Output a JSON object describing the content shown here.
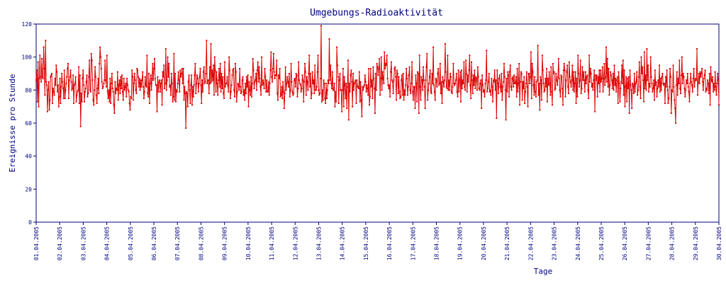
{
  "chart_data": {
    "type": "line",
    "title": "Umgebungs-Radioaktivität",
    "xlabel": "Tage",
    "ylabel": "Ereignisse pro Stunde",
    "ylim": [
      0,
      120
    ],
    "yticks": [
      0,
      20,
      40,
      60,
      80,
      100,
      120
    ],
    "xlim": [
      "2005-04-01",
      "2005-04-30"
    ],
    "x_tick_labels": [
      "01.04.2005",
      "02.04.2005",
      "03.04.2005",
      "04.04.2005",
      "05.04.2005",
      "06.04.2005",
      "07.04.2005",
      "08.04.2005",
      "09.04.2005",
      "10.04.2005",
      "11.04.2005",
      "12.04.2005",
      "13.04.2005",
      "14.04.2005",
      "15.04.2005",
      "16.04.2005",
      "17.04.2005",
      "18.04.2005",
      "19.04.2005",
      "20.04.2005",
      "21.04.2005",
      "22.04.2005",
      "23.04.2005",
      "24.04.2005",
      "25.04.2005",
      "26.04.2005",
      "27.04.2005",
      "28.04.2005",
      "29.04.2005",
      "30.04.2005"
    ],
    "grid": false,
    "legend": "none",
    "colors": {
      "series": "#dd0000",
      "axes": "#000080",
      "text": "#000080"
    },
    "series": [
      {
        "values": [
          86,
          92,
          73,
          97,
          70,
          87,
          101,
          88,
          85,
          99,
          88,
          87,
          106,
          93,
          77,
          110,
          85,
          83,
          67,
          80,
          85,
          68,
          74,
          88,
          89,
          90,
          72,
          81,
          79,
          77,
          87,
          83,
          95,
          91,
          79,
          83,
          70,
          76,
          87,
          72,
          82,
          90,
          85,
          81,
          75,
          92,
          75,
          80,
          84,
          88,
          93,
          96,
          75,
          86,
          88,
          92,
          85,
          80,
          81,
          89,
          72,
          83,
          84,
          88,
          73,
          77,
          79,
          80,
          94,
          72,
          89,
          58,
          78,
          73,
          87,
          92,
          83,
          73,
          79,
          81,
          85,
          89,
          76,
          78,
          88,
          98,
          80,
          79,
          102,
          98,
          86,
          74,
          71,
          80,
          94,
          88,
          77,
          72,
          81,
          87,
          78,
          96,
          106,
          100,
          93,
          85,
          81,
          82,
          84,
          86,
          98,
          86,
          82,
          101,
          79,
          75,
          80,
          73,
          87,
          72,
          84,
          90,
          81,
          79,
          71,
          66,
          85,
          78,
          81,
          80,
          91,
          74,
          83,
          86,
          78,
          88,
          81,
          89,
          79,
          74,
          87,
          80,
          82,
          84,
          76,
          87,
          83,
          80,
          79,
          72,
          68,
          76,
          75,
          92,
          88,
          74,
          84,
          90,
          86,
          80,
          78,
          93,
          92,
          88,
          82,
          87,
          80,
          86,
          82,
          86,
          91,
          82,
          75,
          79,
          88,
          83,
          82,
          101,
          78,
          76,
          90,
          72,
          84,
          89,
          80,
          87,
          96,
          86,
          93,
          99,
          87,
          83,
          83,
          67,
          88,
          79,
          85,
          86,
          79,
          84,
          86,
          71,
          91,
          88,
          95,
          81,
          84,
          105,
          80,
          86,
          100,
          88,
          96,
          82,
          83,
          77,
          90,
          84,
          73,
          76,
          102,
          74,
          90,
          73,
          80,
          79,
          84,
          91,
          86,
          79,
          92,
          88,
          90,
          93,
          84,
          93,
          74,
          82,
          78,
          57,
          79,
          78,
          70,
          85,
          89,
          80,
          72,
          83,
          89,
          71,
          82,
          76,
          83,
          89,
          96,
          78,
          84,
          89,
          87,
          79,
          84,
          88,
          93,
          83,
          72,
          86,
          79,
          91,
          94,
          84,
          85,
          90,
          110,
          84,
          86,
          86,
          78,
          94,
          84,
          108,
          85,
          92,
          86,
          95,
          77,
          100,
          92,
          79,
          91,
          84,
          77,
          86,
          93,
          82,
          96,
          79,
          90,
          81,
          88,
          78,
          75,
          97,
          82,
          84,
          84,
          88,
          83,
          79,
          100,
          92,
          75,
          79,
          83,
          89,
          92,
          93,
          80,
          76,
          96,
          91,
          73,
          79,
          84,
          83,
          80,
          93,
          82,
          78,
          79,
          86,
          88,
          77,
          80,
          74,
          84,
          78,
          88,
          82,
          89,
          70,
          85,
          80,
          77,
          88,
          76,
          84,
          99,
          92,
          81,
          85,
          86,
          90,
          80,
          92,
          97,
          85,
          94,
          87,
          82,
          77,
          100,
          83,
          86,
          84,
          81,
          93,
          88,
          79,
          86,
          79,
          79,
          85,
          77,
          84,
          92,
          103,
          88,
          85,
          93,
          102,
          91,
          87,
          89,
          89,
          98,
          78,
          74,
          89,
          87,
          93,
          76,
          77,
          82,
          75,
          85,
          79,
          69,
          78,
          94,
          80,
          84,
          88,
          85,
          82,
          90,
          76,
          80,
          96,
          85,
          79,
          77,
          78,
          86,
          87,
          82,
          90,
          89,
          76,
          81,
          97,
          86,
          84,
          83,
          79,
          81,
          89,
          86,
          73,
          85,
          96,
          91,
          77,
          88,
          85,
          80,
          90,
          101,
          82,
          90,
          75,
          78,
          91,
          84,
          86,
          78,
          95,
          80,
          80,
          82,
          91,
          101,
          80,
          77,
          78,
          87,
          119,
          73,
          80,
          74,
          86,
          84,
          75,
          72,
          84,
          75,
          80,
          86,
          84,
          111,
          86,
          95,
          84,
          81,
          91,
          80,
          80,
          84,
          70,
          79,
          73,
          106,
          95,
          88,
          72,
          86,
          90,
          80,
          80,
          67,
          80,
          93,
          70,
          88,
          83,
          75,
          84,
          69,
          82,
          98,
          62,
          84,
          79,
          89,
          92,
          85,
          70,
          90,
          80,
          84,
          85,
          86,
          72,
          86,
          82,
          82,
          81,
          91,
          73,
          85,
          74,
          64,
          82,
          80,
          82,
          83,
          89,
          85,
          79,
          83,
          81,
          77,
          93,
          71,
          76,
          93,
          82,
          86,
          75,
          94,
          87,
          81,
          66,
          90,
          80,
          96,
          94,
          89,
          93,
          99,
          77,
          87,
          100,
          80,
          91,
          87,
          84,
          103,
          93,
          96,
          95,
          101,
          87,
          83,
          81,
          83,
          76,
          91,
          97,
          86,
          85,
          78,
          86,
          93,
          94,
          88,
          74,
          92,
          90,
          78,
          88,
          79,
          75,
          76,
          86,
          89,
          77,
          90,
          74,
          80,
          77,
          83,
          93,
          87,
          77,
          82,
          89,
          94,
          80,
          78,
          84,
          97,
          79,
          74,
          82,
          82,
          69,
          89,
          84,
          73,
          91,
          90,
          66,
          101,
          82,
          74,
          88,
          86,
          80,
          94,
          86,
          82,
          69,
          86,
          94,
          102,
          74,
          80,
          84,
          88,
          92,
          79,
          78,
          90,
          84,
          106,
          83,
          79,
          74,
          87,
          86,
          82,
          90,
          93,
          83,
          84,
          96,
          78,
          85,
          72,
          88,
          85,
          82,
          86,
          108,
          91,
          82,
          81,
          101,
          80,
          86,
          80,
          90,
          88,
          79,
          78,
          82,
          96,
          84,
          83,
          84,
          86,
          90,
          79,
          76,
          92,
          79,
          86,
          91,
          73,
          92,
          81,
          86,
          84,
          97,
          82,
          80,
          98,
          90,
          79,
          89,
          85,
          92,
          101,
          83,
          75,
          97,
          86,
          78,
          89,
          83,
          92,
          81,
          88,
          87,
          80,
          94,
          88,
          81,
          80,
          84,
          86,
          69,
          89,
          83,
          79,
          80,
          76,
          84,
          86,
          104,
          79,
          81,
          85,
          90,
          79,
          80,
          77,
          87,
          82,
          73,
          86,
          85,
          92,
          80,
          86,
          63,
          92,
          84,
          78,
          87,
          89,
          82,
          79,
          90,
          74,
          82,
          85,
          96,
          88,
          80,
          62,
          87,
          79,
          91,
          89,
          76,
          91,
          95,
          82,
          80,
          87,
          88,
          82,
          89,
          84,
          84,
          88,
          76,
          93,
          79,
          84,
          96,
          71,
          85,
          91,
          90,
          74,
          85,
          81,
          88,
          72,
          79,
          84,
          91,
          82,
          70,
          90,
          90,
          84,
          88,
          103,
          75,
          96,
          91,
          83,
          77,
          88,
          79,
          76,
          85,
          86,
          107,
          77,
          84,
          68,
          88,
          86,
          74,
          101,
          92,
          84,
          79,
          80,
          87,
          82,
          93,
          73,
          87,
          83,
          91,
          84,
          77,
          94,
          79,
          71,
          96,
          90,
          91,
          80,
          81,
          90,
          86,
          83,
          88,
          99,
          87,
          80,
          76,
          89,
          88,
          81,
          71,
          92,
          96,
          92,
          76,
          86,
          91,
          95,
          82,
          78,
          97,
          88,
          85,
          82,
          86,
          95,
          80,
          91,
          79,
          84,
          91,
          72,
          87,
          76,
          101,
          90,
          82,
          86,
          98,
          78,
          81,
          94,
          86,
          91,
          86,
          79,
          91,
          84,
          88,
          89,
          80,
          75,
          101,
          85,
          93,
          90,
          82,
          84,
          80,
          86,
          92,
          67,
          89,
          86,
          89,
          76,
          88,
          84,
          92,
          79,
          92,
          85,
          87,
          94,
          79,
          87,
          96,
          83,
          88,
          106,
          85,
          99,
          82,
          93,
          77,
          83,
          91,
          89,
          86,
          81,
          90,
          80,
          95,
          83,
          87,
          79,
          86,
          88,
          72,
          91,
          84,
          73,
          81,
          85,
          95,
          84,
          98,
          77,
          92,
          70,
          82,
          88,
          73,
          87,
          81,
          88,
          66,
          92,
          83,
          80,
          69,
          84,
          83,
          78,
          90,
          79,
          84,
          85,
          91,
          77,
          80,
          88,
          97,
          82,
          75,
          100,
          90,
          94,
          86,
          73,
          103,
          81,
          89,
          80,
          105,
          86,
          95,
          79,
          84,
          82,
          100,
          88,
          84,
          79,
          81,
          86,
          74,
          92,
          83,
          85,
          76,
          81,
          86,
          82,
          95,
          79,
          87,
          80,
          88,
          90,
          84,
          83,
          84,
          72,
          88,
          82,
          92,
          80,
          72,
          75,
          82,
          93,
          88,
          66,
          80,
          79,
          95,
          82,
          74,
          69,
          60,
          83,
          91,
          77,
          87,
          84,
          98,
          81,
          78,
          89,
          100,
          84,
          90,
          88,
          81,
          76,
          80,
          86,
          84,
          90,
          82,
          79,
          73,
          84,
          90,
          85,
          83,
          79,
          87,
          93,
          82,
          86,
          87,
          86,
          105,
          77,
          85,
          90,
          84,
          91,
          88,
          90,
          93,
          85,
          80,
          87,
          89,
          92,
          79,
          81,
          80,
          86,
          84,
          78,
          90,
          71,
          94,
          86,
          85,
          88,
          79,
          84,
          80,
          91,
          82,
          77,
          84,
          90,
          86,
          71
        ]
      }
    ]
  }
}
